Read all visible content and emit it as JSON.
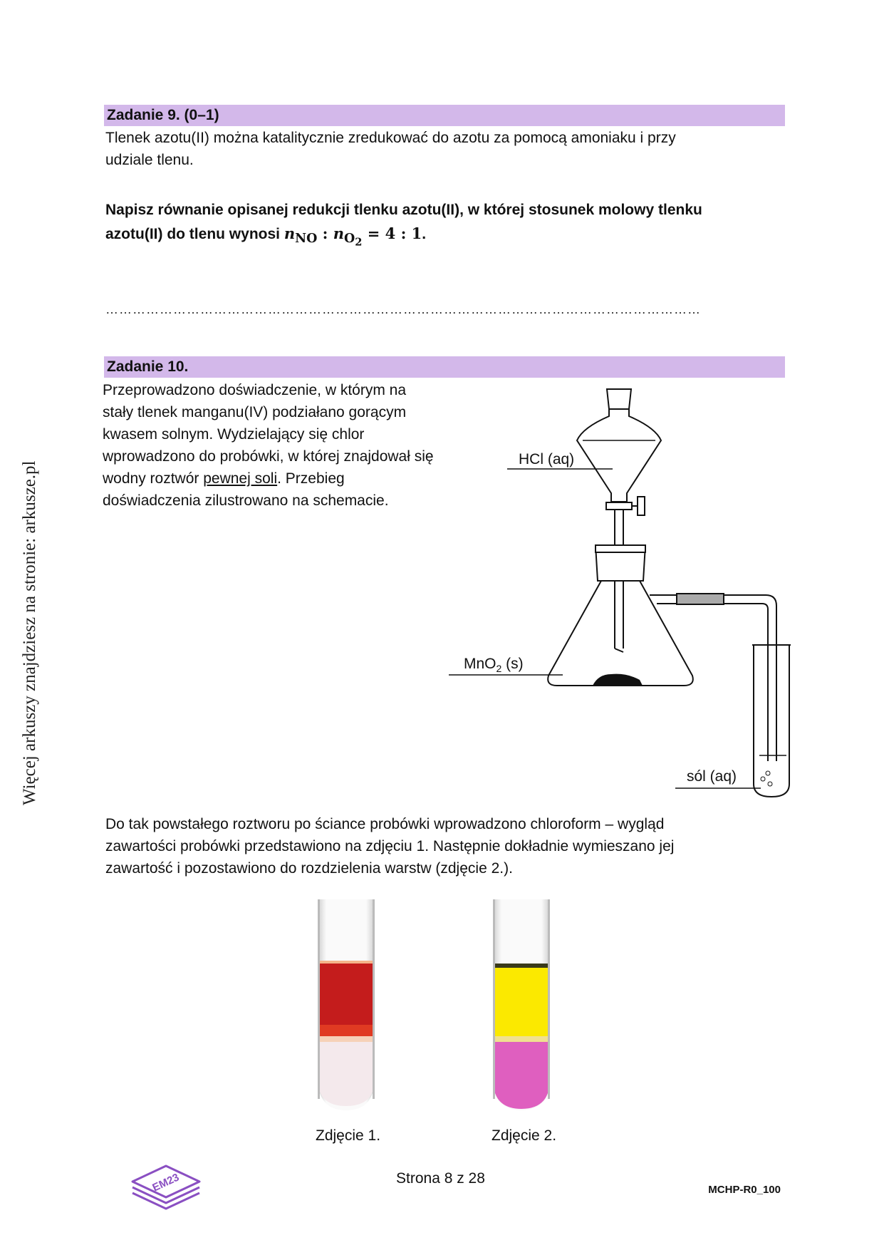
{
  "side_text": "Więcej arkuszy znajdziesz na stronie: arkusze.pl",
  "task9": {
    "header": "Zadanie 9. (0–1)",
    "intro_line1": "Tlenek azotu(II) można katalitycznie zredukować do azotu za pomocą amoniaku i przy",
    "intro_line2": "udziale tlenu.",
    "command_line1": "Napisz równanie opisanej redukcji tlenku azotu(II), w której stosunek molowy tlenku",
    "command_line2": "azotu(II) do tlenu wynosi",
    "ratio": {
      "n": "n",
      "no": "NO",
      "sep": " : ",
      "o": "O",
      "o_sub": "2",
      "rhs": " = 4 : 1"
    },
    "period": ".",
    "answer_dots": "……………………………………………………………………………………………………………………"
  },
  "task10": {
    "header": "Zadanie 10.",
    "desc_lines": [
      "Przeprowadzono doświadczenie, w którym na",
      "stały tlenek manganu(IV) podziałano gorącym",
      "kwasem solnym. Wydzielający się chlor",
      "wprowadzono do probówki, w której znajdował się"
    ],
    "desc_line5_pre": "wodny roztwór ",
    "desc_line5_underlined": "pewnej soli",
    "desc_line5_post": ". Przebieg",
    "desc_line6": "doświadczenia zilustrowano na schemacie.",
    "labels": {
      "hcl": "HCl (aq)",
      "mno2_pre": "MnO",
      "mno2_sub": "2",
      "mno2_post": " (s)",
      "sol": "sól (aq)"
    },
    "after_lines": [
      "Do tak powstałego roztworu po ściance probówki wprowadzono chloroform – wygląd",
      "zawartości probówki przedstawiono na zdjęciu 1. Następnie dokładnie wymieszano jej",
      "zawartość i pozostawiono do rozdzielenia warstw (zdjęcie 2.)."
    ],
    "caption1": "Zdjęcie 1.",
    "caption2": "Zdjęcie 2."
  },
  "footer": {
    "page": "Strona 8 z 28",
    "code": "MCHP-R0_100",
    "logo_text": "EM23"
  },
  "colors": {
    "bar": "#d3b8ea",
    "photo1_top": "#c41c1c",
    "photo1_bottom": "#f4e9ec",
    "photo2_top": "#fbe900",
    "photo2_bottom": "#df5fbf",
    "logo": "#8a4fc2"
  }
}
